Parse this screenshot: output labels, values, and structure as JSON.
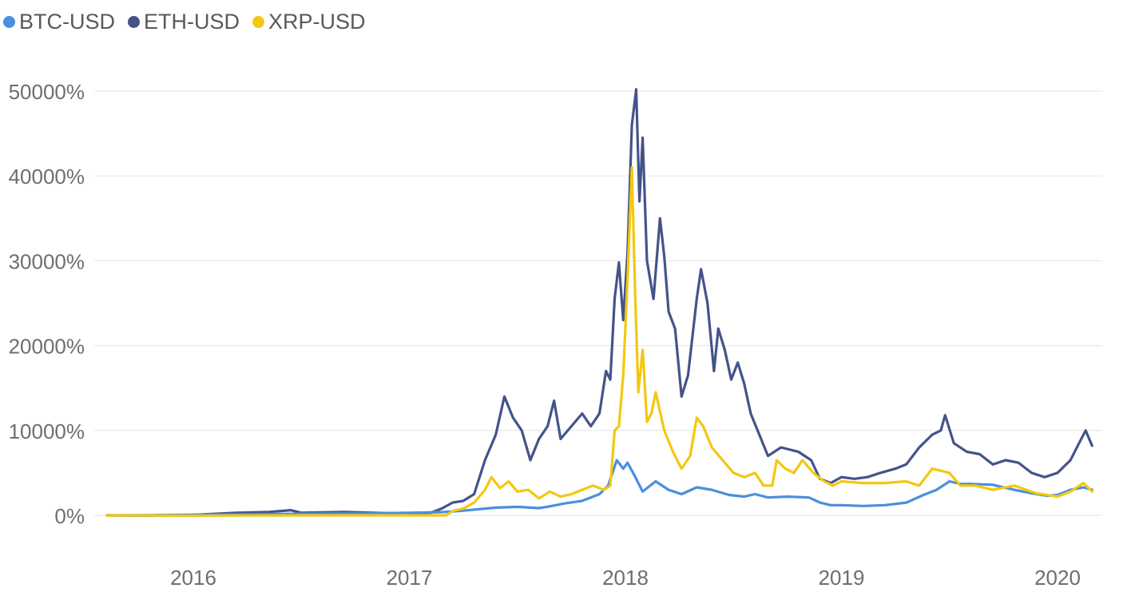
{
  "chart_data": {
    "type": "line",
    "title": "",
    "xlabel": "",
    "ylabel": "",
    "y_unit": "%",
    "ylim": [
      -5000,
      50000
    ],
    "y_ticks": [
      0,
      10000,
      20000,
      30000,
      40000,
      50000
    ],
    "y_tick_labels": [
      "0%",
      "10000%",
      "20000%",
      "30000%",
      "40000%",
      "50000%"
    ],
    "xlim": [
      2015.59,
      2020.18
    ],
    "x_ticks": [
      2016,
      2017,
      2018,
      2019,
      2020
    ],
    "x_tick_labels": [
      "2016",
      "2017",
      "2018",
      "2019",
      "2020"
    ],
    "grid": true,
    "legend_position": "top-left",
    "series": [
      {
        "name": "BTC-USD",
        "color": "#4a8fdd",
        "points": [
          [
            2015.6,
            0
          ],
          [
            2015.8,
            20
          ],
          [
            2016.0,
            80
          ],
          [
            2016.2,
            100
          ],
          [
            2016.4,
            150
          ],
          [
            2016.6,
            200
          ],
          [
            2016.8,
            220
          ],
          [
            2017.0,
            300
          ],
          [
            2017.15,
            380
          ],
          [
            2017.25,
            550
          ],
          [
            2017.4,
            900
          ],
          [
            2017.5,
            1000
          ],
          [
            2017.6,
            850
          ],
          [
            2017.65,
            1050
          ],
          [
            2017.72,
            1400
          ],
          [
            2017.8,
            1700
          ],
          [
            2017.88,
            2500
          ],
          [
            2017.92,
            3500
          ],
          [
            2017.96,
            6500
          ],
          [
            2017.99,
            5500
          ],
          [
            2018.01,
            6200
          ],
          [
            2018.04,
            4800
          ],
          [
            2018.08,
            2800
          ],
          [
            2018.1,
            3200
          ],
          [
            2018.14,
            4000
          ],
          [
            2018.2,
            3000
          ],
          [
            2018.26,
            2500
          ],
          [
            2018.33,
            3300
          ],
          [
            2018.4,
            3000
          ],
          [
            2018.48,
            2400
          ],
          [
            2018.55,
            2200
          ],
          [
            2018.6,
            2500
          ],
          [
            2018.66,
            2100
          ],
          [
            2018.75,
            2200
          ],
          [
            2018.85,
            2100
          ],
          [
            2018.9,
            1500
          ],
          [
            2018.95,
            1200
          ],
          [
            2019.0,
            1200
          ],
          [
            2019.1,
            1100
          ],
          [
            2019.2,
            1200
          ],
          [
            2019.3,
            1500
          ],
          [
            2019.38,
            2400
          ],
          [
            2019.44,
            3000
          ],
          [
            2019.5,
            4000
          ],
          [
            2019.55,
            3700
          ],
          [
            2019.6,
            3700
          ],
          [
            2019.7,
            3600
          ],
          [
            2019.8,
            3000
          ],
          [
            2019.88,
            2600
          ],
          [
            2019.95,
            2300
          ],
          [
            2020.0,
            2400
          ],
          [
            2020.06,
            3000
          ],
          [
            2020.12,
            3300
          ],
          [
            2020.16,
            3000
          ]
        ]
      },
      {
        "name": "ETH-USD",
        "color": "#44538a",
        "points": [
          [
            2015.6,
            0
          ],
          [
            2015.8,
            -50
          ],
          [
            2016.0,
            50
          ],
          [
            2016.2,
            300
          ],
          [
            2016.35,
            400
          ],
          [
            2016.45,
            600
          ],
          [
            2016.5,
            300
          ],
          [
            2016.7,
            400
          ],
          [
            2016.9,
            250
          ],
          [
            2017.0,
            250
          ],
          [
            2017.1,
            300
          ],
          [
            2017.15,
            800
          ],
          [
            2017.2,
            1500
          ],
          [
            2017.25,
            1700
          ],
          [
            2017.3,
            2500
          ],
          [
            2017.35,
            6500
          ],
          [
            2017.4,
            9500
          ],
          [
            2017.44,
            14000
          ],
          [
            2017.48,
            11500
          ],
          [
            2017.52,
            10000
          ],
          [
            2017.56,
            6500
          ],
          [
            2017.6,
            9000
          ],
          [
            2017.64,
            10500
          ],
          [
            2017.67,
            13500
          ],
          [
            2017.7,
            9000
          ],
          [
            2017.75,
            10500
          ],
          [
            2017.8,
            12000
          ],
          [
            2017.84,
            10500
          ],
          [
            2017.88,
            12000
          ],
          [
            2017.91,
            17000
          ],
          [
            2017.93,
            16000
          ],
          [
            2017.95,
            25500
          ],
          [
            2017.97,
            29800
          ],
          [
            2017.99,
            23000
          ],
          [
            2018.01,
            31000
          ],
          [
            2018.03,
            46000
          ],
          [
            2018.05,
            50200
          ],
          [
            2018.065,
            37000
          ],
          [
            2018.08,
            44500
          ],
          [
            2018.1,
            30000
          ],
          [
            2018.13,
            25500
          ],
          [
            2018.16,
            35000
          ],
          [
            2018.18,
            30500
          ],
          [
            2018.2,
            24000
          ],
          [
            2018.23,
            22000
          ],
          [
            2018.26,
            14000
          ],
          [
            2018.29,
            16500
          ],
          [
            2018.33,
            25500
          ],
          [
            2018.35,
            29000
          ],
          [
            2018.38,
            25000
          ],
          [
            2018.41,
            17000
          ],
          [
            2018.43,
            22000
          ],
          [
            2018.46,
            19500
          ],
          [
            2018.49,
            16000
          ],
          [
            2018.52,
            18000
          ],
          [
            2018.55,
            15500
          ],
          [
            2018.58,
            12000
          ],
          [
            2018.62,
            9500
          ],
          [
            2018.66,
            7000
          ],
          [
            2018.72,
            8000
          ],
          [
            2018.8,
            7500
          ],
          [
            2018.86,
            6500
          ],
          [
            2018.9,
            4300
          ],
          [
            2018.95,
            3800
          ],
          [
            2019.0,
            4500
          ],
          [
            2019.06,
            4300
          ],
          [
            2019.12,
            4500
          ],
          [
            2019.18,
            5000
          ],
          [
            2019.25,
            5500
          ],
          [
            2019.3,
            6000
          ],
          [
            2019.36,
            8000
          ],
          [
            2019.42,
            9500
          ],
          [
            2019.46,
            10000
          ],
          [
            2019.48,
            11800
          ],
          [
            2019.52,
            8500
          ],
          [
            2019.58,
            7500
          ],
          [
            2019.64,
            7200
          ],
          [
            2019.7,
            6000
          ],
          [
            2019.76,
            6500
          ],
          [
            2019.82,
            6200
          ],
          [
            2019.88,
            5000
          ],
          [
            2019.94,
            4500
          ],
          [
            2020.0,
            5000
          ],
          [
            2020.06,
            6500
          ],
          [
            2020.1,
            8500
          ],
          [
            2020.13,
            10000
          ],
          [
            2020.16,
            8200
          ]
        ]
      },
      {
        "name": "XRP-USD",
        "color": "#f2c811",
        "points": [
          [
            2015.6,
            0
          ],
          [
            2016.0,
            -50
          ],
          [
            2016.5,
            0
          ],
          [
            2017.0,
            0
          ],
          [
            2017.17,
            0
          ],
          [
            2017.2,
            500
          ],
          [
            2017.25,
            800
          ],
          [
            2017.3,
            1500
          ],
          [
            2017.35,
            3000
          ],
          [
            2017.38,
            4500
          ],
          [
            2017.42,
            3200
          ],
          [
            2017.46,
            4000
          ],
          [
            2017.5,
            2800
          ],
          [
            2017.55,
            3000
          ],
          [
            2017.6,
            2000
          ],
          [
            2017.65,
            2800
          ],
          [
            2017.7,
            2200
          ],
          [
            2017.75,
            2500
          ],
          [
            2017.8,
            3000
          ],
          [
            2017.85,
            3500
          ],
          [
            2017.9,
            3000
          ],
          [
            2017.93,
            3500
          ],
          [
            2017.95,
            10000
          ],
          [
            2017.97,
            10500
          ],
          [
            2017.99,
            16500
          ],
          [
            2018.01,
            28000
          ],
          [
            2018.03,
            41000
          ],
          [
            2018.045,
            26000
          ],
          [
            2018.06,
            14500
          ],
          [
            2018.08,
            19500
          ],
          [
            2018.1,
            11000
          ],
          [
            2018.12,
            12000
          ],
          [
            2018.14,
            14500
          ],
          [
            2018.18,
            10000
          ],
          [
            2018.22,
            7500
          ],
          [
            2018.26,
            5500
          ],
          [
            2018.3,
            7000
          ],
          [
            2018.33,
            11500
          ],
          [
            2018.36,
            10500
          ],
          [
            2018.4,
            8000
          ],
          [
            2018.45,
            6500
          ],
          [
            2018.5,
            5000
          ],
          [
            2018.55,
            4500
          ],
          [
            2018.6,
            5000
          ],
          [
            2018.64,
            3500
          ],
          [
            2018.68,
            3500
          ],
          [
            2018.7,
            6500
          ],
          [
            2018.74,
            5500
          ],
          [
            2018.78,
            5000
          ],
          [
            2018.82,
            6500
          ],
          [
            2018.87,
            5000
          ],
          [
            2018.92,
            4000
          ],
          [
            2018.96,
            3500
          ],
          [
            2019.0,
            4000
          ],
          [
            2019.1,
            3800
          ],
          [
            2019.2,
            3800
          ],
          [
            2019.3,
            4000
          ],
          [
            2019.36,
            3500
          ],
          [
            2019.42,
            5500
          ],
          [
            2019.5,
            5000
          ],
          [
            2019.55,
            3500
          ],
          [
            2019.62,
            3500
          ],
          [
            2019.7,
            3000
          ],
          [
            2019.8,
            3500
          ],
          [
            2019.9,
            2600
          ],
          [
            2019.95,
            2400
          ],
          [
            2020.0,
            2200
          ],
          [
            2020.06,
            2800
          ],
          [
            2020.12,
            3800
          ],
          [
            2020.16,
            2800
          ]
        ]
      }
    ]
  }
}
